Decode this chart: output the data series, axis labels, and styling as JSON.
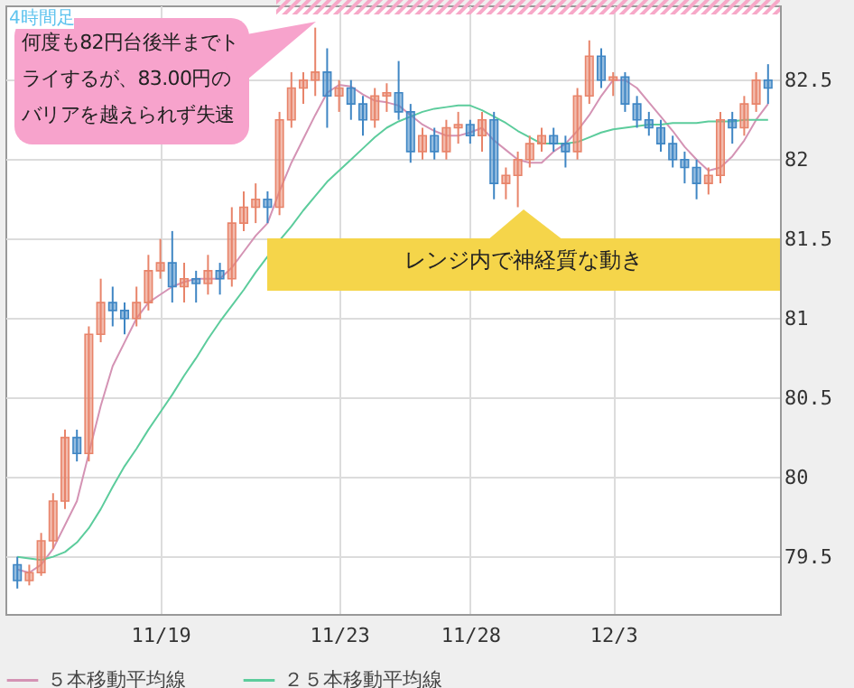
{
  "chart_data": {
    "type": "candlestick",
    "categories": [
      null,
      null,
      null,
      null,
      null,
      null,
      null,
      null,
      null,
      null,
      null,
      null,
      "11/19",
      null,
      null,
      null,
      null,
      null,
      null,
      null,
      null,
      null,
      null,
      null,
      null,
      null,
      null,
      "11/23",
      null,
      null,
      null,
      null,
      null,
      null,
      null,
      null,
      null,
      null,
      "11/28",
      null,
      null,
      null,
      null,
      null,
      null,
      null,
      null,
      null,
      null,
      null,
      "12/3",
      null,
      null,
      null,
      null,
      null,
      null,
      null,
      null,
      null,
      null,
      null,
      null,
      null
    ],
    "ohlc": [
      [
        79.45,
        79.5,
        79.3,
        79.35
      ],
      [
        79.35,
        79.45,
        79.32,
        79.4
      ],
      [
        79.4,
        79.65,
        79.38,
        79.6
      ],
      [
        79.6,
        79.9,
        79.55,
        79.85
      ],
      [
        79.85,
        80.3,
        79.8,
        80.25
      ],
      [
        80.25,
        80.3,
        80.1,
        80.15
      ],
      [
        80.15,
        80.95,
        80.1,
        80.9
      ],
      [
        80.9,
        81.25,
        80.85,
        81.1
      ],
      [
        81.1,
        81.2,
        80.95,
        81.05
      ],
      [
        81.05,
        81.1,
        80.9,
        81.0
      ],
      [
        81.0,
        81.2,
        80.95,
        81.1
      ],
      [
        81.1,
        81.4,
        81.05,
        81.3
      ],
      [
        81.3,
        81.5,
        81.25,
        81.35
      ],
      [
        81.35,
        81.55,
        81.1,
        81.2
      ],
      [
        81.2,
        81.35,
        81.1,
        81.25
      ],
      [
        81.25,
        81.3,
        81.1,
        81.22
      ],
      [
        81.22,
        81.4,
        81.15,
        81.3
      ],
      [
        81.3,
        81.35,
        81.15,
        81.25
      ],
      [
        81.25,
        81.7,
        81.2,
        81.6
      ],
      [
        81.6,
        81.8,
        81.55,
        81.7
      ],
      [
        81.7,
        81.85,
        81.6,
        81.75
      ],
      [
        81.75,
        81.8,
        81.6,
        81.7
      ],
      [
        81.7,
        82.3,
        81.65,
        82.25
      ],
      [
        82.25,
        82.55,
        82.2,
        82.45
      ],
      [
        82.45,
        82.55,
        82.35,
        82.5
      ],
      [
        82.5,
        82.83,
        82.4,
        82.55
      ],
      [
        82.55,
        82.7,
        82.2,
        82.4
      ],
      [
        82.4,
        82.5,
        82.3,
        82.45
      ],
      [
        82.45,
        82.5,
        82.25,
        82.35
      ],
      [
        82.35,
        82.4,
        82.15,
        82.25
      ],
      [
        82.25,
        82.45,
        82.2,
        82.4
      ],
      [
        82.4,
        82.48,
        82.3,
        82.42
      ],
      [
        82.42,
        82.62,
        82.25,
        82.3
      ],
      [
        82.3,
        82.35,
        81.98,
        82.05
      ],
      [
        82.05,
        82.2,
        82.0,
        82.15
      ],
      [
        82.15,
        82.2,
        82.0,
        82.05
      ],
      [
        82.05,
        82.25,
        82.0,
        82.2
      ],
      [
        82.2,
        82.3,
        82.1,
        82.22
      ],
      [
        82.22,
        82.25,
        82.1,
        82.15
      ],
      [
        82.15,
        82.3,
        82.05,
        82.25
      ],
      [
        82.25,
        82.3,
        81.75,
        81.85
      ],
      [
        81.85,
        81.95,
        81.75,
        81.9
      ],
      [
        81.9,
        82.05,
        81.7,
        82.0
      ],
      [
        82.0,
        82.15,
        81.95,
        82.1
      ],
      [
        82.1,
        82.2,
        82.05,
        82.15
      ],
      [
        82.15,
        82.2,
        82.05,
        82.1
      ],
      [
        82.1,
        82.15,
        81.95,
        82.05
      ],
      [
        82.05,
        82.45,
        82.0,
        82.4
      ],
      [
        82.4,
        82.75,
        82.35,
        82.65
      ],
      [
        82.65,
        82.7,
        82.45,
        82.5
      ],
      [
        82.5,
        82.55,
        82.4,
        82.52
      ],
      [
        82.52,
        82.55,
        82.3,
        82.35
      ],
      [
        82.35,
        82.4,
        82.2,
        82.25
      ],
      [
        82.25,
        82.3,
        82.15,
        82.2
      ],
      [
        82.2,
        82.25,
        82.05,
        82.1
      ],
      [
        82.1,
        82.15,
        81.95,
        82.0
      ],
      [
        82.0,
        82.05,
        81.85,
        81.95
      ],
      [
        81.95,
        82.0,
        81.75,
        81.85
      ],
      [
        81.85,
        81.95,
        81.78,
        81.9
      ],
      [
        81.9,
        82.3,
        81.85,
        82.25
      ],
      [
        82.25,
        82.3,
        82.1,
        82.2
      ],
      [
        82.2,
        82.4,
        82.15,
        82.35
      ],
      [
        82.35,
        82.55,
        82.3,
        82.5
      ],
      [
        82.5,
        82.6,
        82.35,
        82.45
      ]
    ],
    "series": [
      {
        "name": "５本移動平均線",
        "type": "line",
        "color": "#d493b4",
        "values": [
          79.42,
          79.4,
          79.45,
          79.55,
          79.7,
          79.85,
          80.15,
          80.45,
          80.7,
          80.85,
          81.0,
          81.1,
          81.15,
          81.2,
          81.23,
          81.25,
          81.25,
          81.25,
          81.32,
          81.42,
          81.52,
          81.6,
          81.8,
          81.98,
          82.13,
          82.28,
          82.42,
          82.47,
          82.46,
          82.41,
          82.37,
          82.36,
          82.34,
          82.28,
          82.22,
          82.18,
          82.15,
          82.15,
          82.17,
          82.2,
          82.12,
          82.06,
          82.0,
          81.98,
          81.98,
          82.05,
          82.1,
          82.18,
          82.28,
          82.4,
          82.5,
          82.5,
          82.45,
          82.36,
          82.27,
          82.18,
          82.08,
          82.0,
          81.93,
          81.95,
          82.02,
          82.12,
          82.25,
          82.35
        ]
      },
      {
        "name": "２５本移動平均線",
        "type": "line",
        "color": "#5ccc9c",
        "values": [
          79.5,
          79.49,
          79.48,
          79.5,
          79.53,
          79.59,
          79.68,
          79.8,
          79.94,
          80.07,
          80.18,
          80.3,
          80.41,
          80.52,
          80.64,
          80.75,
          80.87,
          80.98,
          81.08,
          81.18,
          81.29,
          81.39,
          81.49,
          81.58,
          81.68,
          81.77,
          81.86,
          81.93,
          82.0,
          82.07,
          82.14,
          82.2,
          82.24,
          82.27,
          82.3,
          82.32,
          82.33,
          82.34,
          82.34,
          82.31,
          82.27,
          82.23,
          82.18,
          82.14,
          82.1,
          82.1,
          82.1,
          82.11,
          82.14,
          82.17,
          82.19,
          82.2,
          82.21,
          82.22,
          82.22,
          82.23,
          82.23,
          82.23,
          82.24,
          82.24,
          82.24,
          82.25,
          82.25,
          82.25
        ]
      }
    ],
    "ylim": [
      79.14,
      82.97
    ],
    "yticks": [
      79.5,
      80,
      80.5,
      81,
      81.5,
      82,
      82.5
    ],
    "grid": true,
    "legend": "bottom",
    "annotations": [
      "4時間足",
      "何度も82円台後半までトライするが、83.00円のバリアを越えられず失速",
      "レンジ内で神経質な動き"
    ]
  }
}
